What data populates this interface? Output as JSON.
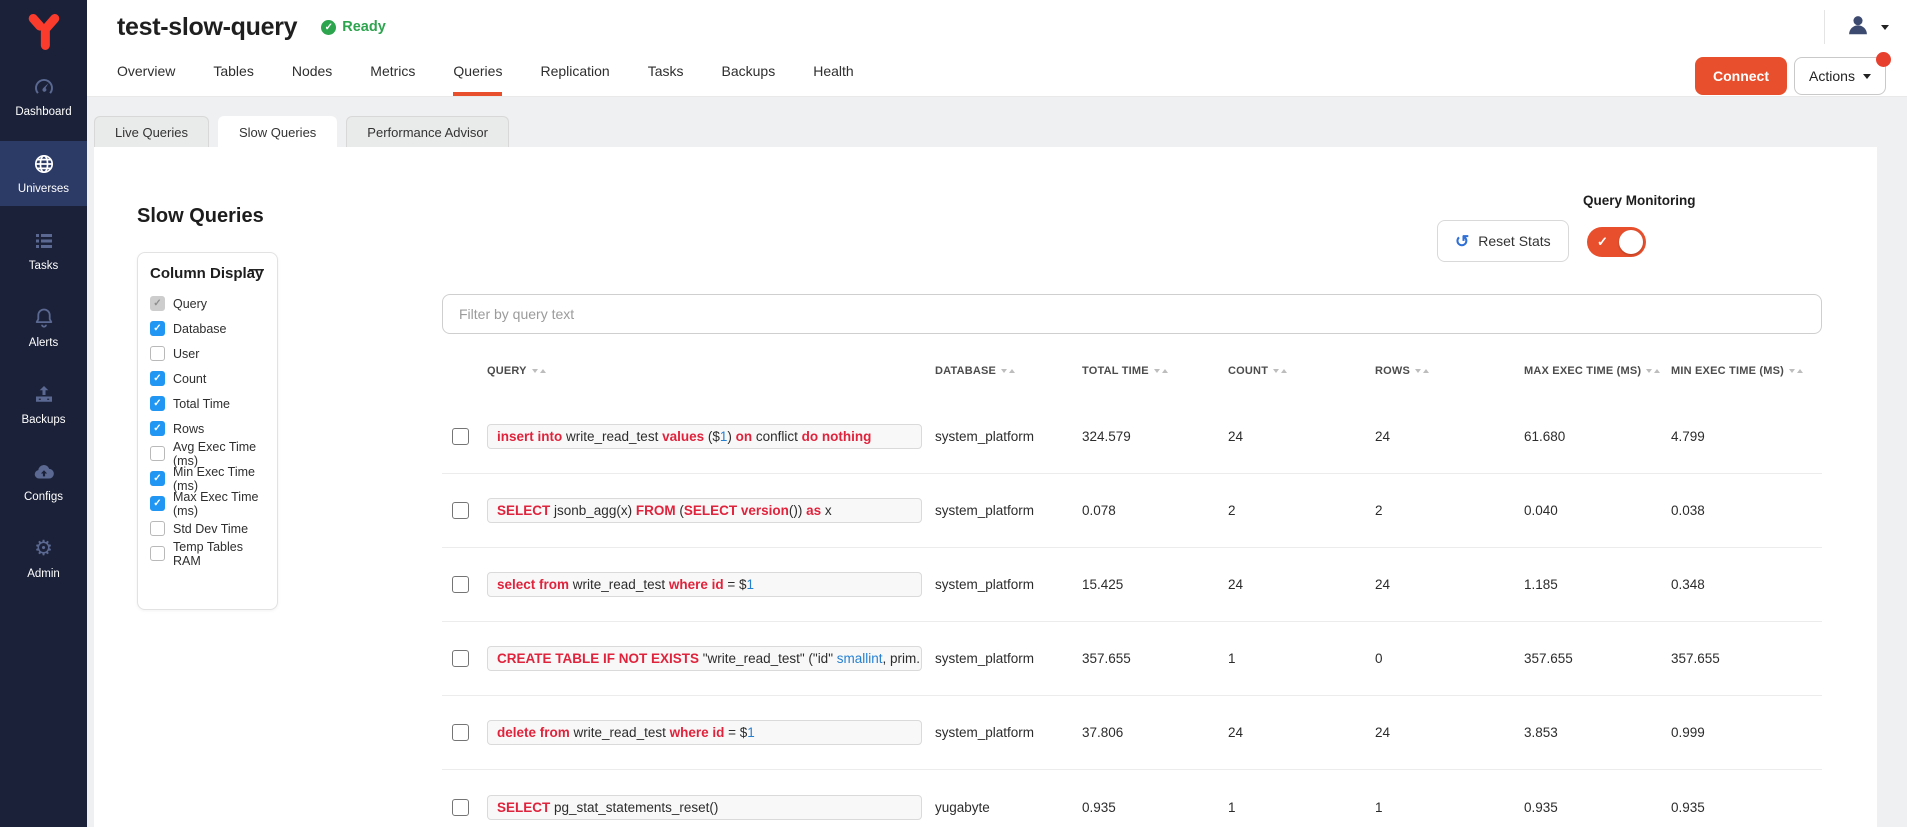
{
  "sidebar": {
    "items": [
      {
        "label": "Dashboard",
        "icon": "gauge",
        "active": false
      },
      {
        "label": "Universes",
        "icon": "globe",
        "active": true
      },
      {
        "label": "Tasks",
        "icon": "task-list",
        "active": false
      },
      {
        "label": "Alerts",
        "icon": "bell",
        "active": false
      },
      {
        "label": "Backups",
        "icon": "backup-upload",
        "active": false
      },
      {
        "label": "Configs",
        "icon": "cloud-upload",
        "active": false
      },
      {
        "label": "Admin",
        "icon": "gear",
        "active": false
      }
    ]
  },
  "header": {
    "title": "test-slow-query",
    "status": "Ready"
  },
  "nav_tabs": [
    {
      "label": "Overview",
      "active": false
    },
    {
      "label": "Tables",
      "active": false
    },
    {
      "label": "Nodes",
      "active": false
    },
    {
      "label": "Metrics",
      "active": false
    },
    {
      "label": "Queries",
      "active": true
    },
    {
      "label": "Replication",
      "active": false
    },
    {
      "label": "Tasks",
      "active": false
    },
    {
      "label": "Backups",
      "active": false
    },
    {
      "label": "Health",
      "active": false
    }
  ],
  "buttons": {
    "connect_label": "Connect",
    "actions_label": "Actions"
  },
  "subtabs": [
    {
      "label": "Live Queries",
      "active": false
    },
    {
      "label": "Slow Queries",
      "active": true
    },
    {
      "label": "Performance Advisor",
      "active": false
    }
  ],
  "page": {
    "title": "Slow Queries",
    "reset_label": "Reset Stats",
    "monitoring_label": "Query Monitoring",
    "monitoring_on": true,
    "filter_placeholder": "Filter by query text"
  },
  "column_display": {
    "title": "Column Display",
    "items": [
      {
        "label": "Query",
        "checked": true,
        "disabled": true
      },
      {
        "label": "Database",
        "checked": true,
        "disabled": false
      },
      {
        "label": "User",
        "checked": false,
        "disabled": false
      },
      {
        "label": "Count",
        "checked": true,
        "disabled": false
      },
      {
        "label": "Total Time",
        "checked": true,
        "disabled": false
      },
      {
        "label": "Rows",
        "checked": true,
        "disabled": false
      },
      {
        "label": "Avg Exec Time (ms)",
        "checked": false,
        "disabled": false
      },
      {
        "label": "Min Exec Time (ms)",
        "checked": true,
        "disabled": false
      },
      {
        "label": "Max Exec Time (ms)",
        "checked": true,
        "disabled": false
      },
      {
        "label": "Std Dev Time",
        "checked": false,
        "disabled": false
      },
      {
        "label": "Temp Tables RAM",
        "checked": false,
        "disabled": false
      }
    ]
  },
  "table": {
    "columns": [
      "QUERY",
      "DATABASE",
      "TOTAL TIME",
      "COUNT",
      "ROWS",
      "MAX EXEC TIME (MS)",
      "MIN EXEC TIME (MS)"
    ],
    "rows": [
      {
        "query": [
          {
            "t": "insert into",
            "s": "k"
          },
          {
            "t": " write_read_test ",
            "s": "p"
          },
          {
            "t": "values",
            "s": "k"
          },
          {
            "t": " ($",
            "s": "p"
          },
          {
            "t": "1",
            "s": "b"
          },
          {
            "t": ") ",
            "s": "p"
          },
          {
            "t": "on",
            "s": "k"
          },
          {
            "t": " conflict ",
            "s": "p"
          },
          {
            "t": "do nothing",
            "s": "k"
          }
        ],
        "database": "system_platform",
        "total_time": "324.579",
        "count": "24",
        "rows": "24",
        "max_exec_time": "61.680",
        "min_exec_time": "4.799"
      },
      {
        "query": [
          {
            "t": "SELECT",
            "s": "k"
          },
          {
            "t": " jsonb_agg(x) ",
            "s": "p"
          },
          {
            "t": "FROM",
            "s": "k"
          },
          {
            "t": " (",
            "s": "p"
          },
          {
            "t": "SELECT",
            "s": "k"
          },
          {
            "t": " ",
            "s": "p"
          },
          {
            "t": "version",
            "s": "k"
          },
          {
            "t": "()) ",
            "s": "p"
          },
          {
            "t": "as",
            "s": "k"
          },
          {
            "t": " x",
            "s": "p"
          }
        ],
        "database": "system_platform",
        "total_time": "0.078",
        "count": "2",
        "rows": "2",
        "max_exec_time": "0.040",
        "min_exec_time": "0.038"
      },
      {
        "query": [
          {
            "t": "select from",
            "s": "k"
          },
          {
            "t": " write_read_test ",
            "s": "p"
          },
          {
            "t": "where id",
            "s": "k"
          },
          {
            "t": " = $",
            "s": "p"
          },
          {
            "t": "1",
            "s": "b"
          }
        ],
        "database": "system_platform",
        "total_time": "15.425",
        "count": "24",
        "rows": "24",
        "max_exec_time": "1.185",
        "min_exec_time": "0.348"
      },
      {
        "query": [
          {
            "t": "CREATE TABLE IF NOT EXISTS",
            "s": "k"
          },
          {
            "t": " \"write_read_test\" (\"id\" ",
            "s": "p"
          },
          {
            "t": "smallint",
            "s": "b"
          },
          {
            "t": ", prim...",
            "s": "p"
          }
        ],
        "database": "system_platform",
        "total_time": "357.655",
        "count": "1",
        "rows": "0",
        "max_exec_time": "357.655",
        "min_exec_time": "357.655"
      },
      {
        "query": [
          {
            "t": "delete from",
            "s": "k"
          },
          {
            "t": " write_read_test ",
            "s": "p"
          },
          {
            "t": "where id",
            "s": "k"
          },
          {
            "t": " = $",
            "s": "p"
          },
          {
            "t": "1",
            "s": "b"
          }
        ],
        "database": "system_platform",
        "total_time": "37.806",
        "count": "24",
        "rows": "24",
        "max_exec_time": "3.853",
        "min_exec_time": "0.999"
      },
      {
        "query": [
          {
            "t": "SELECT",
            "s": "k"
          },
          {
            "t": " pg_stat_statements_reset()",
            "s": "p"
          }
        ],
        "database": "yugabyte",
        "total_time": "0.935",
        "count": "1",
        "rows": "1",
        "max_exec_time": "0.935",
        "min_exec_time": "0.935"
      }
    ]
  }
}
